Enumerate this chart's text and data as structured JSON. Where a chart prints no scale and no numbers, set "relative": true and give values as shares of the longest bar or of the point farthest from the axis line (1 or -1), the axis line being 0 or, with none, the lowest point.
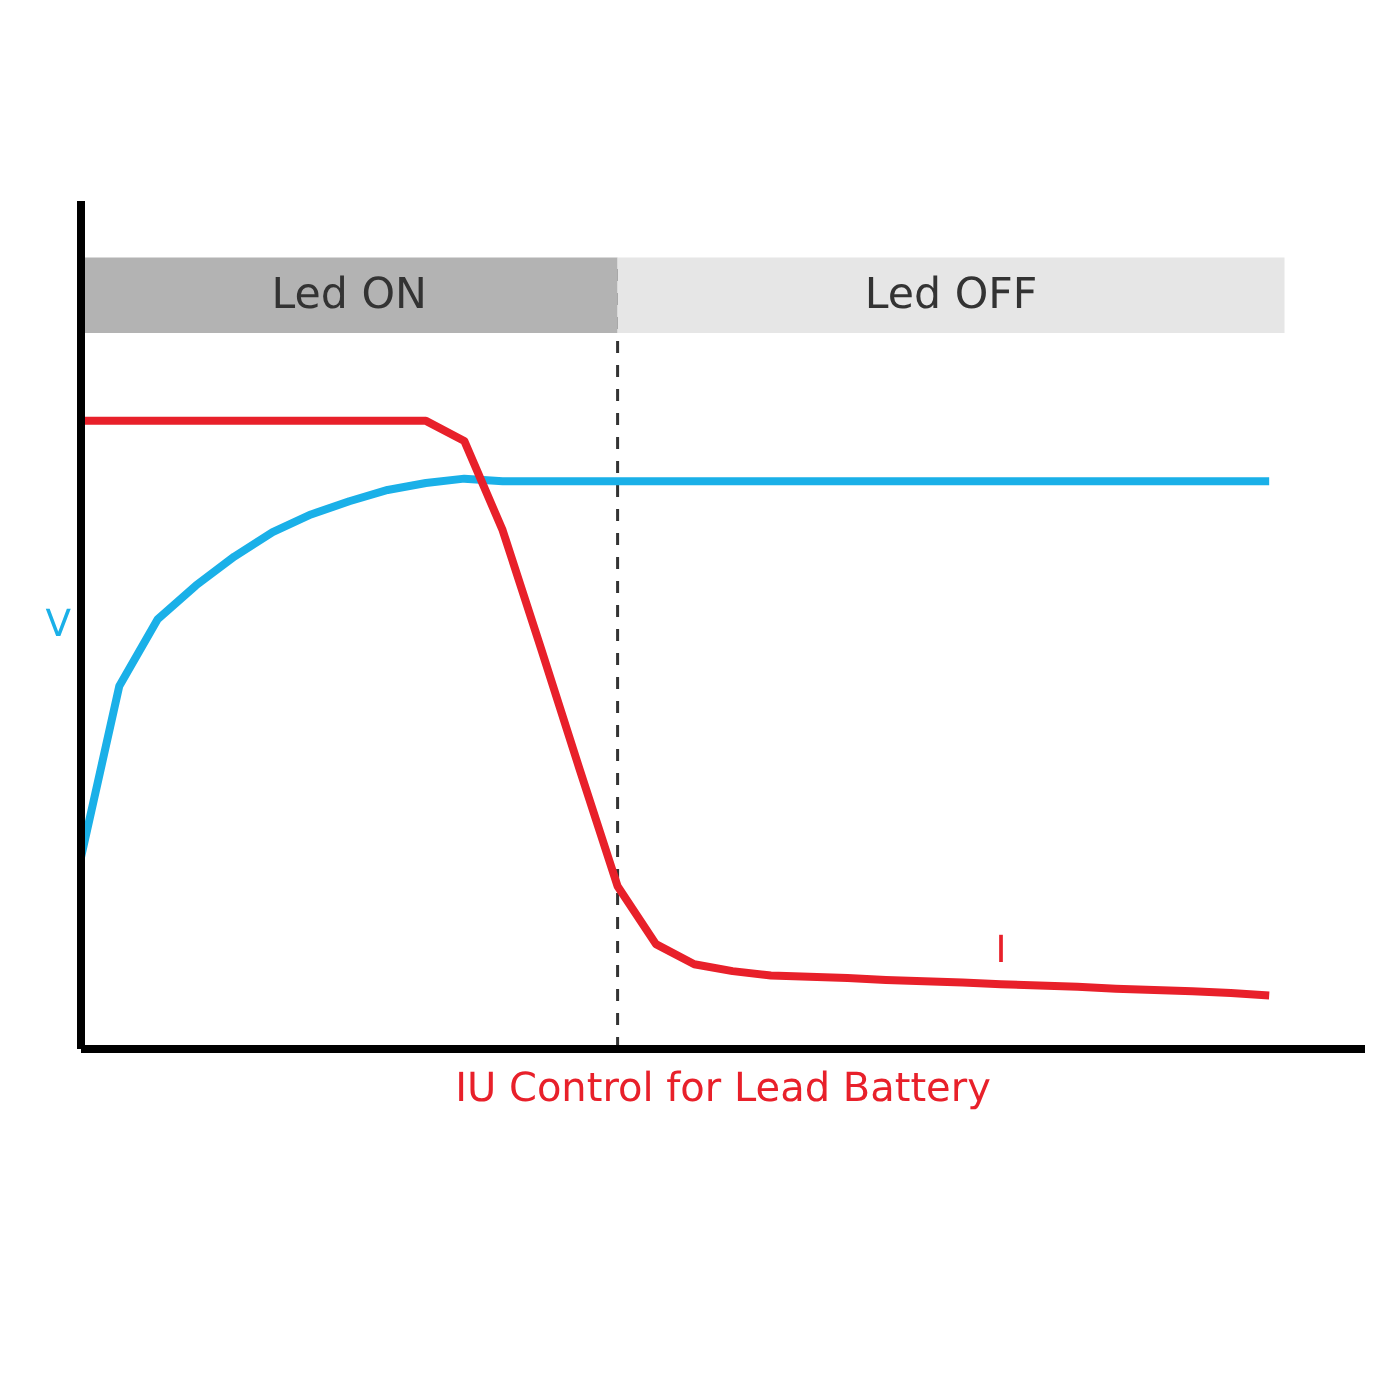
{
  "chart_data": {
    "type": "line",
    "title": "IU Control for Lead Battery",
    "relative": true,
    "marker": "none",
    "line_style": "solid",
    "categories": [
      null,
      null,
      null,
      null,
      null,
      null,
      null,
      null,
      null,
      null,
      null,
      null,
      null,
      null,
      null,
      null,
      null,
      null,
      null,
      null,
      null,
      null,
      null,
      null,
      null,
      null,
      null,
      null,
      null,
      null,
      null,
      null
    ],
    "series": [
      {
        "name": "V",
        "color": "#1ab0e8",
        "values": [
          0.305,
          0.578,
          0.684,
          0.738,
          0.784,
          0.823,
          0.851,
          0.872,
          0.89,
          0.901,
          0.908,
          0.904,
          0.904,
          0.904,
          0.904,
          0.904,
          0.904,
          0.904,
          0.904,
          0.904,
          0.904,
          0.904,
          0.904,
          0.904,
          0.904,
          0.904,
          0.904,
          0.904,
          0.904,
          0.904,
          0.904,
          0.904
        ]
      },
      {
        "name": "I",
        "color": "#e8202a",
        "values": [
          1.0,
          1.0,
          1.0,
          1.0,
          1.0,
          1.0,
          1.0,
          1.0,
          1.0,
          1.0,
          0.968,
          0.826,
          0.638,
          0.447,
          0.259,
          0.167,
          0.135,
          0.124,
          0.117,
          0.115,
          0.113,
          0.11,
          0.108,
          0.106,
          0.103,
          0.101,
          0.099,
          0.096,
          0.094,
          0.092,
          0.089,
          0.085
        ]
      }
    ],
    "annotations": [
      "Led ON",
      "Led OFF"
    ]
  }
}
